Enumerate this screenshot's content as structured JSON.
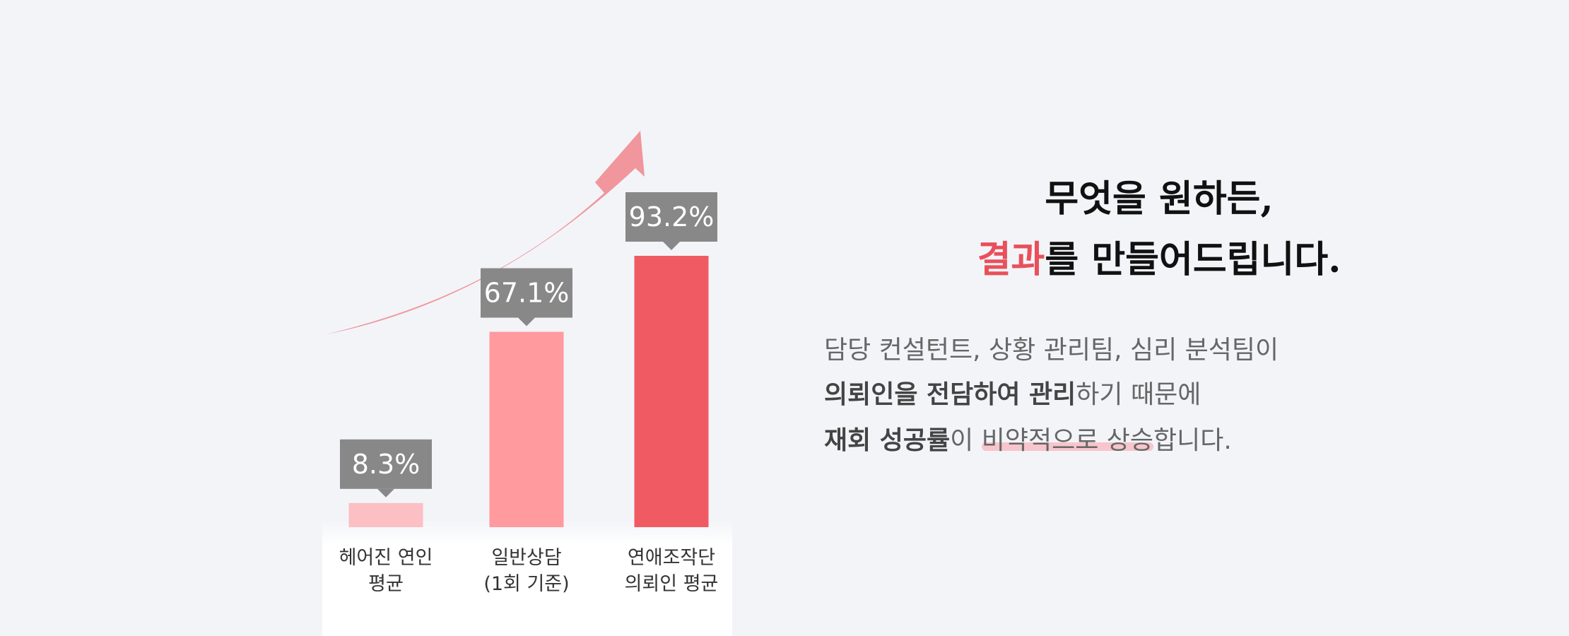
{
  "chart_data": {
    "type": "bar",
    "categories": [
      "헤어진 연인\n평균",
      "일반상담\n(1회 기준)",
      "연애조작단\n의뢰인 평균"
    ],
    "values": [
      8.3,
      67.1,
      93.2
    ],
    "value_labels": [
      "8.3%",
      "67.1%",
      "93.2%"
    ],
    "bar_colors": [
      "#fbbfc4",
      "#ff9a9f",
      "#f05b63"
    ],
    "label_badge_color": "#888888",
    "arrow_color": "#f0969c",
    "title": "",
    "xlabel": "",
    "ylabel": "",
    "ylim": [
      0,
      100
    ],
    "grid": false,
    "legend": "none"
  },
  "headline": {
    "line1": "무엇을 원하든,",
    "line2_accent": "결과",
    "line2_rest": "를 만들어드립니다."
  },
  "description": {
    "line1": "담당 컨설턴트, 상황 관리팀, 심리 분석팀이",
    "line2_bold": "의뢰인을 전담하여 관리",
    "line2_rest": "하기 때문에",
    "line3_bold": "재회 성공률",
    "line3_mid": "이 ",
    "line3_highlight": "비약적으로 상승",
    "line3_rest": "합니다."
  },
  "colors": {
    "accent": "#e8505b",
    "background": "#f3f4f8"
  }
}
